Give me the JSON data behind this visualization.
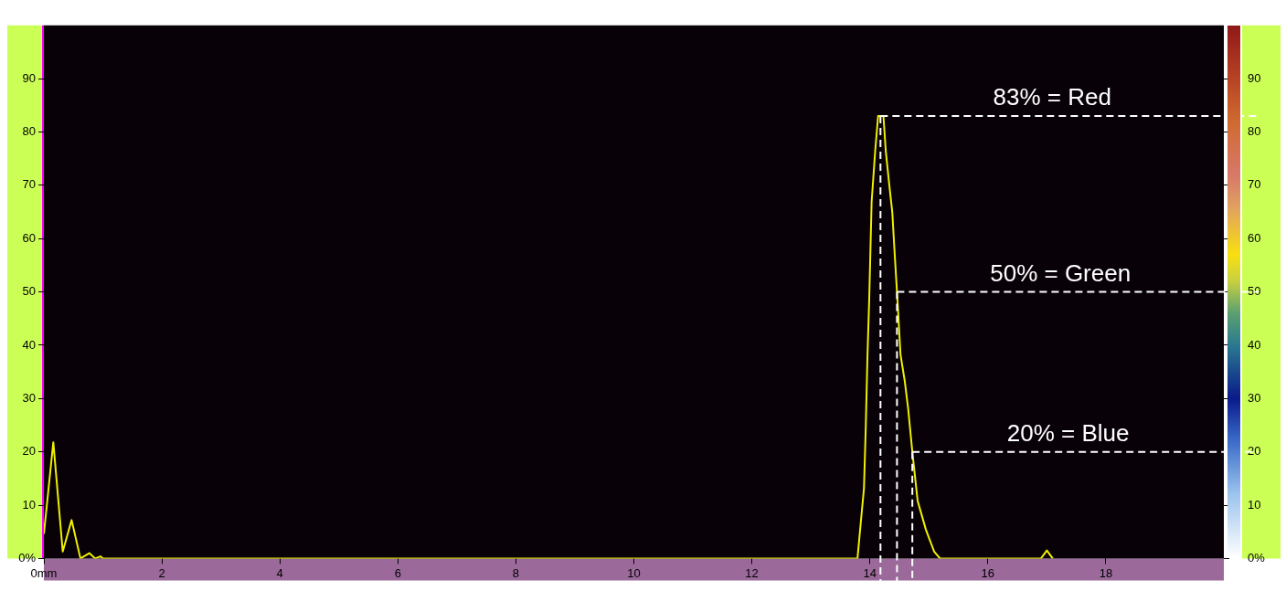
{
  "chart_data": {
    "type": "line",
    "x": [
      0,
      0.16,
      0.32,
      0.47,
      0.62,
      0.77,
      0.87,
      0.96,
      1.0,
      13.79,
      13.85,
      13.9,
      13.93,
      13.96,
      13.99,
      14.03,
      14.09,
      14.14,
      14.18,
      14.23,
      14.27,
      14.33,
      14.38,
      14.42,
      14.46,
      14.52,
      14.59,
      14.65,
      14.72,
      14.81,
      14.95,
      15.09,
      15.19,
      16.9,
      17.0,
      17.1
    ],
    "series": [
      {
        "color": "#f0f000",
        "values": [
          4.6,
          21.8,
          1.3,
          7.2,
          0,
          1,
          0,
          0.4,
          0,
          0,
          7.2,
          13.1,
          24.4,
          38.2,
          49,
          66.9,
          76.4,
          83,
          83,
          83,
          76.4,
          70,
          65,
          57.3,
          50,
          38.2,
          33.4,
          28,
          20,
          10.8,
          5.4,
          1.3,
          0,
          0,
          1.5,
          0
        ]
      }
    ],
    "xlim": [
      0,
      20
    ],
    "xticks": [
      {
        "value": 0,
        "label": "0mm"
      },
      2,
      4,
      6,
      8,
      10,
      12,
      14,
      16,
      18
    ],
    "ylim": [
      0,
      100
    ],
    "yticks": [
      {
        "value": 0,
        "label": "0%"
      },
      10,
      20,
      30,
      40,
      50,
      60,
      70,
      80,
      90
    ],
    "y2lim": [
      0,
      100
    ],
    "y2ticks": [
      {
        "value": 0,
        "label": "0%"
      },
      10,
      20,
      30,
      40,
      50,
      60,
      70,
      80,
      90
    ],
    "ref_lines": [
      {
        "axis": "y",
        "value": 83,
        "label": "83% = Red",
        "color": "#ffffff",
        "line_style": "dashed"
      },
      {
        "axis": "y",
        "value": 50,
        "label": "50% = Green",
        "color": "#ffffff",
        "line_style": "dashed"
      },
      {
        "axis": "y",
        "value": 20,
        "label": "20% = Blue",
        "color": "#ffffff",
        "line_style": "dashed"
      },
      {
        "axis": "x",
        "value": 14.18,
        "color": "#ffffff",
        "line_style": "dashed"
      },
      {
        "axis": "x",
        "value": 14.46,
        "color": "#ffffff",
        "line_style": "dashed"
      },
      {
        "axis": "x",
        "value": 14.72,
        "color": "#ffffff",
        "line_style": "dashed"
      }
    ],
    "legend": false,
    "grid": false,
    "marker": "none",
    "line_style": "solid"
  }
}
